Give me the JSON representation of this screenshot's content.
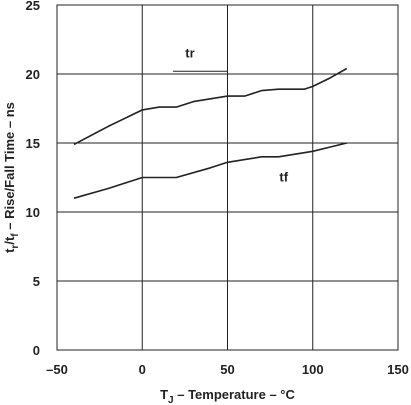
{
  "chart_data": {
    "type": "line",
    "title": "",
    "xlabel": "T_J – Temperature – °C",
    "xlabel_parts": {
      "main": "T",
      "sub": "J",
      "rest": " – Temperature – °C"
    },
    "ylabel": "t_r/t_f – Rise/Fall Time – ns",
    "ylabel_parts": {
      "t1": "t",
      "s1": "r",
      "mid": "/t",
      "s2": "f",
      "rest": " – Rise/Fall Time – ns"
    },
    "xlim": [
      -50,
      150
    ],
    "ylim": [
      0,
      25
    ],
    "xticks": [
      -50,
      0,
      50,
      100,
      150
    ],
    "xtick_labels": [
      "–50",
      "0",
      "50",
      "100",
      "150"
    ],
    "yticks": [
      0,
      5,
      10,
      15,
      20,
      25
    ],
    "ytick_labels": [
      "0",
      "5",
      "10",
      "15",
      "20",
      "25"
    ],
    "grid": true,
    "series": [
      {
        "name": "tr",
        "color": "#222222",
        "x": [
          -40,
          -20,
          -10,
          0,
          10,
          20,
          30,
          40,
          50,
          60,
          70,
          80,
          95,
          100,
          110,
          120
        ],
        "y": [
          14.9,
          16.2,
          16.8,
          17.4,
          17.6,
          17.6,
          18.0,
          18.2,
          18.4,
          18.4,
          18.8,
          18.9,
          18.9,
          19.1,
          19.7,
          20.4
        ]
      },
      {
        "name": "tf",
        "color": "#222222",
        "x": [
          -40,
          -20,
          -10,
          0,
          20,
          40,
          50,
          60,
          70,
          80,
          100,
          110,
          120
        ],
        "y": [
          11.0,
          11.7,
          12.1,
          12.5,
          12.5,
          13.2,
          13.6,
          13.8,
          14.0,
          14.0,
          14.4,
          14.7,
          15.0
        ]
      }
    ]
  }
}
